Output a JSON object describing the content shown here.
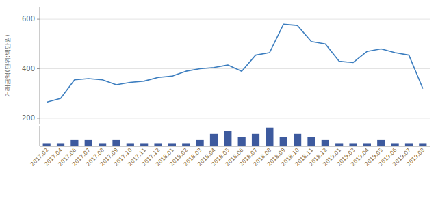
{
  "chart_data": [
    {
      "type": "line",
      "y_label": "거래금액(단위:백만원)",
      "categories": [
        "2017.02",
        "2017.04",
        "2017.06",
        "2017.07",
        "2017.08",
        "2017.09",
        "2017.10",
        "2017.11",
        "2017.12",
        "2018.01",
        "2018.02",
        "2018.03",
        "2018.04",
        "2018.05",
        "2018.06",
        "2018.07",
        "2018.08",
        "2018.09",
        "2018.10",
        "2018.11",
        "2018.12",
        "2019.01",
        "2019.03",
        "2019.04",
        "2019.05",
        "2019.06",
        "2019.07",
        "2019.08"
      ],
      "values": [
        265,
        280,
        355,
        360,
        355,
        335,
        345,
        350,
        365,
        370,
        390,
        400,
        405,
        415,
        390,
        455,
        465,
        580,
        575,
        510,
        500,
        430,
        425,
        470,
        480,
        465,
        455,
        320
      ],
      "color": "#3b7dbf",
      "ylim": [
        175,
        650
      ],
      "yticks": [
        200,
        400,
        600
      ],
      "grid": true,
      "tick_labels": "y"
    },
    {
      "type": "bar",
      "categories": [
        "2017.02",
        "2017.04",
        "2017.06",
        "2017.07",
        "2017.08",
        "2017.09",
        "2017.10",
        "2017.11",
        "2017.12",
        "2018.01",
        "2018.02",
        "2018.03",
        "2018.04",
        "2018.05",
        "2018.06",
        "2018.07",
        "2018.08",
        "2018.09",
        "2018.10",
        "2018.11",
        "2018.12",
        "2019.01",
        "2019.03",
        "2019.04",
        "2019.05",
        "2019.06",
        "2019.07",
        "2019.08"
      ],
      "values": [
        1,
        1,
        2,
        2,
        1,
        2,
        1,
        1,
        1,
        1,
        1,
        2,
        4,
        5,
        3,
        4,
        6,
        3,
        4,
        3,
        2,
        1,
        1,
        1,
        2,
        1,
        1,
        1
      ],
      "color": "#3d5a9e",
      "ylim": [
        0,
        6.6
      ],
      "grid": false,
      "tick_labels": "x"
    }
  ]
}
